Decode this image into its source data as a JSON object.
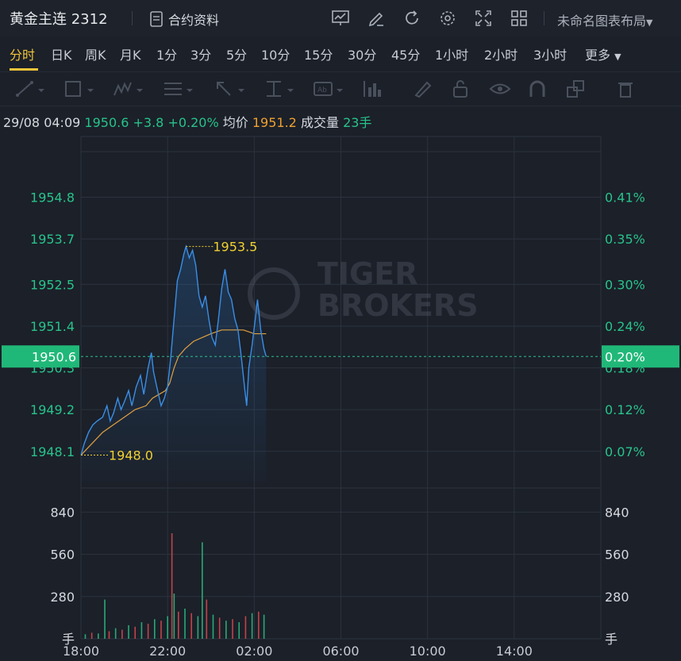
{
  "header": {
    "instrument": "黄金主连 2312",
    "contract_info": "合约资料",
    "layout_name": "未命名图表布局",
    "tools": [
      "chart-icon",
      "edit-icon",
      "refresh-icon",
      "settings-icon",
      "fullscreen-icon",
      "grid-icon"
    ]
  },
  "tabs": [
    "分时",
    "日K",
    "周K",
    "月K",
    "1分",
    "3分",
    "5分",
    "10分",
    "15分",
    "30分",
    "45分",
    "1小时",
    "2小时",
    "3小时",
    "更多"
  ],
  "active_tab": "分时",
  "info": {
    "datetime": "29/08 04:09",
    "price": "1950.6",
    "change": "+3.8",
    "change_pct": "+0.20%",
    "avg_label": "均价",
    "avg_value": "1951.2",
    "vol_label": "成交量",
    "vol_value": "23手"
  },
  "watermark": [
    "TIGER",
    "BROKERS"
  ],
  "colors": {
    "up": "#28c38a",
    "price_line": "#3a8ee6",
    "avg_line": "#e0a040",
    "bg": "#1b2029",
    "annot": "#f0d030"
  },
  "chart_data": {
    "type": "line",
    "x_ticks": [
      "18:00",
      "22:00",
      "02:00",
      "06:00",
      "10:00",
      "14:00"
    ],
    "y_ticks": [
      "1954.8",
      "1953.7",
      "1952.5",
      "1951.4",
      "1950.3",
      "1949.2",
      "1948.1"
    ],
    "y_ticks_right": [
      "0.41%",
      "0.35%",
      "0.30%",
      "0.24%",
      "0.18%",
      "0.12%",
      "0.07%"
    ],
    "ylim": [
      1947.3,
      1956.4
    ],
    "current_price_label": "1950.6",
    "current_pct_label": "0.20%",
    "current_price": 1950.6,
    "high_label": "1953.5",
    "low_label": "1948.0",
    "price_series": [
      {
        "t": 0,
        "v": 1948.0
      },
      {
        "t": 0.15,
        "v": 1948.3
      },
      {
        "t": 0.35,
        "v": 1948.6
      },
      {
        "t": 0.55,
        "v": 1948.8
      },
      {
        "t": 0.75,
        "v": 1948.9
      },
      {
        "t": 1.0,
        "v": 1949.0
      },
      {
        "t": 1.2,
        "v": 1949.3
      },
      {
        "t": 1.35,
        "v": 1948.9
      },
      {
        "t": 1.5,
        "v": 1949.1
      },
      {
        "t": 1.7,
        "v": 1949.5
      },
      {
        "t": 1.85,
        "v": 1949.2
      },
      {
        "t": 2.0,
        "v": 1949.4
      },
      {
        "t": 2.2,
        "v": 1949.7
      },
      {
        "t": 2.35,
        "v": 1949.3
      },
      {
        "t": 2.55,
        "v": 1949.8
      },
      {
        "t": 2.75,
        "v": 1950.1
      },
      {
        "t": 2.9,
        "v": 1949.6
      },
      {
        "t": 3.1,
        "v": 1950.3
      },
      {
        "t": 3.25,
        "v": 1950.7
      },
      {
        "t": 3.35,
        "v": 1950.2
      },
      {
        "t": 3.5,
        "v": 1949.8
      },
      {
        "t": 3.7,
        "v": 1949.3
      },
      {
        "t": 3.85,
        "v": 1949.5
      },
      {
        "t": 4.0,
        "v": 1949.8
      },
      {
        "t": 4.15,
        "v": 1950.6
      },
      {
        "t": 4.3,
        "v": 1951.6
      },
      {
        "t": 4.45,
        "v": 1952.6
      },
      {
        "t": 4.6,
        "v": 1952.9
      },
      {
        "t": 4.75,
        "v": 1953.3
      },
      {
        "t": 4.85,
        "v": 1953.5
      },
      {
        "t": 5.0,
        "v": 1953.2
      },
      {
        "t": 5.15,
        "v": 1953.4
      },
      {
        "t": 5.3,
        "v": 1953.0
      },
      {
        "t": 5.45,
        "v": 1952.2
      },
      {
        "t": 5.6,
        "v": 1951.9
      },
      {
        "t": 5.75,
        "v": 1952.2
      },
      {
        "t": 5.9,
        "v": 1951.6
      },
      {
        "t": 6.05,
        "v": 1951.1
      },
      {
        "t": 6.2,
        "v": 1950.9
      },
      {
        "t": 6.35,
        "v": 1951.6
      },
      {
        "t": 6.5,
        "v": 1952.4
      },
      {
        "t": 6.65,
        "v": 1952.9
      },
      {
        "t": 6.8,
        "v": 1952.3
      },
      {
        "t": 6.95,
        "v": 1952.1
      },
      {
        "t": 7.1,
        "v": 1951.6
      },
      {
        "t": 7.25,
        "v": 1951.3
      },
      {
        "t": 7.4,
        "v": 1950.6
      },
      {
        "t": 7.55,
        "v": 1949.8
      },
      {
        "t": 7.65,
        "v": 1949.3
      },
      {
        "t": 7.75,
        "v": 1950.3
      },
      {
        "t": 7.9,
        "v": 1950.9
      },
      {
        "t": 8.05,
        "v": 1951.6
      },
      {
        "t": 8.15,
        "v": 1952.1
      },
      {
        "t": 8.3,
        "v": 1951.3
      },
      {
        "t": 8.45,
        "v": 1950.8
      },
      {
        "t": 8.55,
        "v": 1950.6
      }
    ],
    "avg_series": [
      {
        "t": 0,
        "v": 1948.0
      },
      {
        "t": 0.5,
        "v": 1948.3
      },
      {
        "t": 1.0,
        "v": 1948.6
      },
      {
        "t": 1.5,
        "v": 1948.8
      },
      {
        "t": 2.0,
        "v": 1949.0
      },
      {
        "t": 2.5,
        "v": 1949.2
      },
      {
        "t": 3.0,
        "v": 1949.3
      },
      {
        "t": 3.3,
        "v": 1949.5
      },
      {
        "t": 3.6,
        "v": 1949.6
      },
      {
        "t": 3.9,
        "v": 1949.7
      },
      {
        "t": 4.1,
        "v": 1949.9
      },
      {
        "t": 4.3,
        "v": 1950.3
      },
      {
        "t": 4.5,
        "v": 1950.6
      },
      {
        "t": 4.8,
        "v": 1950.8
      },
      {
        "t": 5.2,
        "v": 1951.0
      },
      {
        "t": 5.6,
        "v": 1951.1
      },
      {
        "t": 6.0,
        "v": 1951.2
      },
      {
        "t": 6.5,
        "v": 1951.3
      },
      {
        "t": 7.0,
        "v": 1951.3
      },
      {
        "t": 7.5,
        "v": 1951.3
      },
      {
        "t": 8.0,
        "v": 1951.2
      },
      {
        "t": 8.55,
        "v": 1951.2
      }
    ],
    "volume": {
      "ylim": [
        0,
        1000
      ],
      "y_ticks": [
        "840",
        "560",
        "280"
      ],
      "unit_label": "手",
      "bars": [
        {
          "t": 0.2,
          "v": 30,
          "c": "g"
        },
        {
          "t": 0.5,
          "v": 40,
          "c": "r"
        },
        {
          "t": 0.8,
          "v": 35,
          "c": "g"
        },
        {
          "t": 1.1,
          "v": 260,
          "c": "g"
        },
        {
          "t": 1.3,
          "v": 50,
          "c": "r"
        },
        {
          "t": 1.6,
          "v": 70,
          "c": "g"
        },
        {
          "t": 1.9,
          "v": 60,
          "c": "r"
        },
        {
          "t": 2.2,
          "v": 90,
          "c": "g"
        },
        {
          "t": 2.5,
          "v": 80,
          "c": "r"
        },
        {
          "t": 2.8,
          "v": 110,
          "c": "g"
        },
        {
          "t": 3.1,
          "v": 100,
          "c": "r"
        },
        {
          "t": 3.4,
          "v": 130,
          "c": "g"
        },
        {
          "t": 3.7,
          "v": 120,
          "c": "r"
        },
        {
          "t": 4.0,
          "v": 150,
          "c": "g"
        },
        {
          "t": 4.2,
          "v": 700,
          "c": "r"
        },
        {
          "t": 4.3,
          "v": 300,
          "c": "g"
        },
        {
          "t": 4.5,
          "v": 180,
          "c": "r"
        },
        {
          "t": 4.8,
          "v": 200,
          "c": "g"
        },
        {
          "t": 5.1,
          "v": 170,
          "c": "r"
        },
        {
          "t": 5.4,
          "v": 150,
          "c": "g"
        },
        {
          "t": 5.6,
          "v": 640,
          "c": "g"
        },
        {
          "t": 5.8,
          "v": 260,
          "c": "r"
        },
        {
          "t": 6.1,
          "v": 160,
          "c": "g"
        },
        {
          "t": 6.4,
          "v": 140,
          "c": "r"
        },
        {
          "t": 6.7,
          "v": 120,
          "c": "g"
        },
        {
          "t": 7.0,
          "v": 130,
          "c": "r"
        },
        {
          "t": 7.3,
          "v": 110,
          "c": "g"
        },
        {
          "t": 7.6,
          "v": 150,
          "c": "r"
        },
        {
          "t": 7.9,
          "v": 170,
          "c": "g"
        },
        {
          "t": 8.2,
          "v": 180,
          "c": "r"
        },
        {
          "t": 8.45,
          "v": 160,
          "c": "g"
        }
      ]
    }
  }
}
